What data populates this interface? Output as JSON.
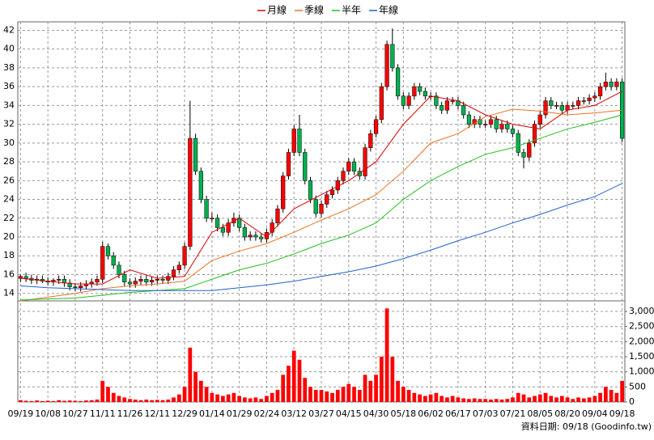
{
  "chart_data": {
    "type": "candlestick",
    "categories": [
      "09/19",
      null,
      null,
      null,
      null,
      "10/08",
      null,
      null,
      null,
      null,
      "10/27",
      null,
      null,
      null,
      null,
      "11/11",
      null,
      null,
      null,
      null,
      "11/26",
      null,
      null,
      null,
      null,
      "12/11",
      null,
      null,
      null,
      null,
      "12/29",
      null,
      null,
      null,
      null,
      "01/14",
      null,
      null,
      null,
      null,
      "01/29",
      null,
      null,
      null,
      null,
      "02/24",
      null,
      null,
      null,
      null,
      "03/12",
      null,
      null,
      null,
      null,
      "03/27",
      null,
      null,
      null,
      null,
      "04/15",
      null,
      null,
      null,
      null,
      "04/30",
      null,
      null,
      null,
      null,
      "05/18",
      null,
      null,
      null,
      null,
      "06/02",
      null,
      null,
      null,
      null,
      "06/17",
      null,
      null,
      null,
      null,
      "07/03",
      null,
      null,
      null,
      null,
      "07/21",
      null,
      null,
      null,
      null,
      "08/05",
      null,
      null,
      null,
      null,
      "08/20",
      null,
      null,
      null,
      null,
      "09/04",
      null,
      null,
      null,
      null,
      "09/18"
    ],
    "candles": {
      "up_color": "#ff0000",
      "down_color": "#00b050",
      "open": [
        15.6,
        15.8,
        15.6,
        15.4,
        15.5,
        15.3,
        15.2,
        15.4,
        15.5,
        15.1,
        14.7,
        14.6,
        14.8,
        15.0,
        15.2,
        15.5,
        19.0,
        18.0,
        17.0,
        16.0,
        15.2,
        15.0,
        15.3,
        15.5,
        15.2,
        15.4,
        15.5,
        15.4,
        15.8,
        16.5,
        17.0,
        19.0,
        30.5,
        27.0,
        24.0,
        22.0,
        22.0,
        21.0,
        20.5,
        21.5,
        22.0,
        21.0,
        20.0,
        20.2,
        20.0,
        19.8,
        20.5,
        21.5,
        23.0,
        26.5,
        29.0,
        31.5,
        29.0,
        26.0,
        24.0,
        22.5,
        23.5,
        24.5,
        25.0,
        26.0,
        27.0,
        28.0,
        27.0,
        26.5,
        29.5,
        31.0,
        32.5,
        36.0,
        40.5,
        38.0,
        35.0,
        34.0,
        35.0,
        36.0,
        35.5,
        35.0,
        35.0,
        34.0,
        33.5,
        34.5,
        34.5,
        34.0,
        33.0,
        32.0,
        32.5,
        32.0,
        32.0,
        32.5,
        31.5,
        32.0,
        31.5,
        31.0,
        29.0,
        28.5,
        30.0,
        32.0,
        33.0,
        34.5,
        34.0,
        34.0,
        33.5,
        34.0,
        34.0,
        34.5,
        34.5,
        34.8,
        35.0,
        36.0,
        36.5,
        36.0,
        36.5
      ],
      "high": [
        16.0,
        16.2,
        16.0,
        15.9,
        15.9,
        15.7,
        15.6,
        15.9,
        15.9,
        15.5,
        15.1,
        15.2,
        15.4,
        15.6,
        15.9,
        19.5,
        19.3,
        18.4,
        17.4,
        16.4,
        15.6,
        15.7,
        15.9,
        15.9,
        15.8,
        15.9,
        15.9,
        16.2,
        16.9,
        17.4,
        19.4,
        34.5,
        31.0,
        27.4,
        24.4,
        22.6,
        22.4,
        21.4,
        21.9,
        22.6,
        22.4,
        21.4,
        20.6,
        20.6,
        20.4,
        20.9,
        21.9,
        23.4,
        26.9,
        29.4,
        31.9,
        33.0,
        29.4,
        26.4,
        24.4,
        23.9,
        24.9,
        25.4,
        26.4,
        27.4,
        28.4,
        28.4,
        27.4,
        29.9,
        31.4,
        32.9,
        36.4,
        40.9,
        42.2,
        38.4,
        35.4,
        35.4,
        36.4,
        36.4,
        35.9,
        35.4,
        35.4,
        34.4,
        34.9,
        34.9,
        34.9,
        34.4,
        33.4,
        32.9,
        32.9,
        32.4,
        32.9,
        32.9,
        32.4,
        32.4,
        31.9,
        31.4,
        29.4,
        30.4,
        32.4,
        33.4,
        34.9,
        34.9,
        34.4,
        34.4,
        34.4,
        34.4,
        34.9,
        34.9,
        35.2,
        35.4,
        36.4,
        37.5,
        36.9,
        36.9,
        36.9
      ],
      "low": [
        15.2,
        15.2,
        15.0,
        15.0,
        15.1,
        14.9,
        14.8,
        15.0,
        14.7,
        14.3,
        14.2,
        14.2,
        14.4,
        14.6,
        14.8,
        15.1,
        17.6,
        16.6,
        15.6,
        14.8,
        14.6,
        14.6,
        14.9,
        14.8,
        14.8,
        15.0,
        15.0,
        15.0,
        15.4,
        16.1,
        16.6,
        18.6,
        26.6,
        23.6,
        21.6,
        21.6,
        20.6,
        20.1,
        20.1,
        21.1,
        20.6,
        19.6,
        19.6,
        19.6,
        19.4,
        19.4,
        20.1,
        21.1,
        22.6,
        26.1,
        28.6,
        28.6,
        25.6,
        23.6,
        22.1,
        22.1,
        23.1,
        24.1,
        24.6,
        25.6,
        26.6,
        26.6,
        26.1,
        26.1,
        29.1,
        30.6,
        32.1,
        35.6,
        37.6,
        34.6,
        33.6,
        33.6,
        34.6,
        35.1,
        34.6,
        34.6,
        33.6,
        33.1,
        33.1,
        34.1,
        33.6,
        32.6,
        31.6,
        31.6,
        31.6,
        31.6,
        31.6,
        31.1,
        31.1,
        31.1,
        30.6,
        28.6,
        27.3,
        28.1,
        29.6,
        31.6,
        32.6,
        33.6,
        33.6,
        33.1,
        33.1,
        33.6,
        33.6,
        34.1,
        34.1,
        34.4,
        34.6,
        35.6,
        35.6,
        35.6,
        30.1
      ],
      "close": [
        15.8,
        15.6,
        15.4,
        15.5,
        15.3,
        15.2,
        15.4,
        15.5,
        15.1,
        14.7,
        14.6,
        14.8,
        15.0,
        15.2,
        15.5,
        19.0,
        18.0,
        17.0,
        16.0,
        15.2,
        15.0,
        15.3,
        15.5,
        15.2,
        15.4,
        15.5,
        15.4,
        15.8,
        16.5,
        17.0,
        19.0,
        30.5,
        27.0,
        24.0,
        22.0,
        22.0,
        21.0,
        20.5,
        21.5,
        22.0,
        21.0,
        20.0,
        20.2,
        20.0,
        19.8,
        20.5,
        21.5,
        23.0,
        26.5,
        29.0,
        31.5,
        29.0,
        26.0,
        24.0,
        22.5,
        23.5,
        24.5,
        25.0,
        26.0,
        27.0,
        28.0,
        27.0,
        26.5,
        29.5,
        31.0,
        32.5,
        36.0,
        40.5,
        38.0,
        35.0,
        34.0,
        35.0,
        36.0,
        35.5,
        35.0,
        35.0,
        34.0,
        33.5,
        34.5,
        34.5,
        34.0,
        33.0,
        32.0,
        32.5,
        32.0,
        32.0,
        32.5,
        31.5,
        32.0,
        31.5,
        31.0,
        29.0,
        28.5,
        30.0,
        32.0,
        33.0,
        34.5,
        34.0,
        34.0,
        33.5,
        34.0,
        34.0,
        34.5,
        34.5,
        34.8,
        35.0,
        36.0,
        36.5,
        36.0,
        36.5,
        30.5
      ]
    },
    "volume": {
      "color": "#ff0000",
      "axis": "y2",
      "values": [
        60,
        40,
        30,
        50,
        30,
        40,
        30,
        60,
        40,
        50,
        40,
        30,
        50,
        60,
        80,
        700,
        500,
        300,
        200,
        150,
        100,
        80,
        60,
        80,
        60,
        70,
        60,
        80,
        150,
        250,
        500,
        1800,
        1000,
        700,
        500,
        300,
        250,
        200,
        250,
        300,
        200,
        150,
        120,
        150,
        100,
        200,
        300,
        400,
        900,
        1200,
        1700,
        1400,
        800,
        500,
        400,
        400,
        350,
        300,
        400,
        500,
        600,
        500,
        400,
        900,
        700,
        900,
        1500,
        3100,
        1500,
        700,
        500,
        400,
        300,
        250,
        200,
        250,
        300,
        200,
        150,
        200,
        150,
        120,
        100,
        120,
        100,
        100,
        80,
        100,
        80,
        100,
        150,
        300,
        250,
        150,
        200,
        250,
        300,
        200,
        150,
        200,
        150,
        100,
        150,
        120,
        150,
        200,
        300,
        500,
        400,
        300,
        700
      ]
    },
    "series": [
      {
        "name": "月線",
        "color": "#e00000",
        "x": [
          0,
          5,
          10,
          15,
          20,
          25,
          30,
          35,
          40,
          45,
          50,
          55,
          60,
          65,
          70,
          75,
          80,
          85,
          90,
          95,
          100,
          105,
          110
        ],
        "values": [
          15.6,
          15.3,
          15.0,
          15.0,
          16.5,
          15.6,
          15.8,
          20.5,
          22,
          20,
          23,
          24.5,
          26,
          28,
          32,
          35,
          34.5,
          33,
          32,
          31.5,
          33.5,
          34,
          35.5
        ]
      },
      {
        "name": "季線",
        "color": "#f07020",
        "x": [
          0,
          5,
          10,
          15,
          20,
          25,
          30,
          35,
          40,
          45,
          50,
          55,
          60,
          65,
          70,
          75,
          80,
          85,
          90,
          95,
          100,
          105,
          110
        ],
        "values": [
          13.2,
          13.6,
          14,
          14.5,
          14.8,
          15,
          15.3,
          17.5,
          18.5,
          19.3,
          20.5,
          21.8,
          23,
          24.5,
          27,
          30,
          31,
          32.8,
          33.6,
          33.4,
          33,
          33.2,
          33.5
        ]
      },
      {
        "name": "半年",
        "color": "#20c020",
        "x": [
          0,
          5,
          10,
          15,
          20,
          25,
          30,
          35,
          40,
          45,
          50,
          55,
          60,
          65,
          70,
          75,
          80,
          85,
          90,
          95,
          100,
          105,
          110
        ],
        "values": [
          13.3,
          13.4,
          13.5,
          13.8,
          14.1,
          14.3,
          14.5,
          15.5,
          16.5,
          17.2,
          18.2,
          19.3,
          20.2,
          21.5,
          24,
          26,
          27.5,
          28.8,
          29.5,
          30.5,
          31.5,
          32.2,
          33
        ]
      },
      {
        "name": "年線",
        "color": "#2060d0",
        "x": [
          0,
          5,
          10,
          15,
          20,
          25,
          30,
          35,
          40,
          45,
          50,
          55,
          60,
          65,
          70,
          75,
          80,
          85,
          90,
          95,
          100,
          105,
          110
        ],
        "values": [
          14.8,
          14.6,
          14.5,
          14.4,
          14.3,
          14.3,
          14.3,
          14.3,
          14.6,
          14.9,
          15.3,
          15.8,
          16.3,
          16.9,
          17.7,
          18.6,
          19.6,
          20.5,
          21.5,
          22.4,
          23.4,
          24.3,
          25.7
        ]
      }
    ],
    "ylim": [
      13.2,
      42.9
    ],
    "yticks": [
      14,
      16,
      18,
      20,
      22,
      24,
      26,
      28,
      30,
      32,
      34,
      36,
      38,
      40,
      42
    ],
    "y2lim": [
      0,
      3350
    ],
    "y2ticks": [
      0,
      500,
      {
        "value": 1000,
        "label": "1,000"
      },
      {
        "value": 1500,
        "label": "1,500"
      },
      {
        "value": 2000,
        "label": "2,000"
      },
      {
        "value": 2500,
        "label": "2,500"
      },
      {
        "value": 3000,
        "label": "3,000"
      }
    ],
    "grid": true,
    "footnote": "資料日期: 09/18 (Goodinfo.tw)"
  }
}
